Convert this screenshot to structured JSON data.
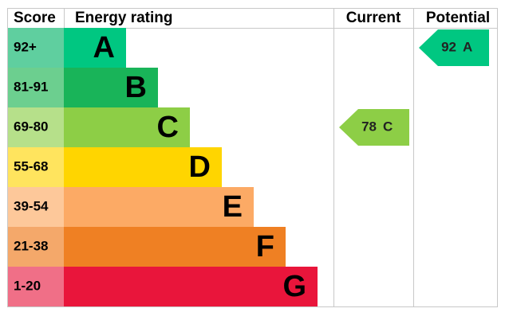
{
  "header": {
    "score": "Score",
    "rating": "Energy rating",
    "current": "Current",
    "potential": "Potential"
  },
  "bands": [
    {
      "range": "92+",
      "letter": "A",
      "color": "#00c781",
      "score_color": "#5fcf9f"
    },
    {
      "range": "81-91",
      "letter": "B",
      "color": "#19b459",
      "score_color": "#6ccf8f"
    },
    {
      "range": "69-80",
      "letter": "C",
      "color": "#8dce46",
      "score_color": "#b6e08a"
    },
    {
      "range": "55-68",
      "letter": "D",
      "color": "#ffd500",
      "score_color": "#ffe45e"
    },
    {
      "range": "39-54",
      "letter": "E",
      "color": "#fcaa65",
      "score_color": "#fdc89a"
    },
    {
      "range": "21-38",
      "letter": "F",
      "color": "#ef8023",
      "score_color": "#f4a86a"
    },
    {
      "range": "1-20",
      "letter": "G",
      "color": "#e9153b",
      "score_color": "#f06f87"
    }
  ],
  "current": {
    "score": 78,
    "letter": "C"
  },
  "potential": {
    "score": 92,
    "letter": "A"
  }
}
